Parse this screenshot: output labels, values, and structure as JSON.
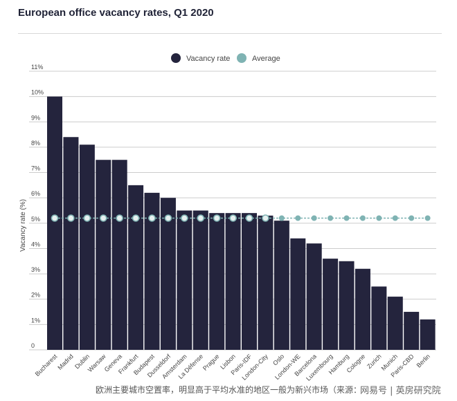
{
  "title": "European office vacancy rates, Q1 2020",
  "caption": "欧洲主要城市空置率，明显高于平均水准的地区一般为新兴市场（来源：",
  "watermark": "网易号 | 英房研究院",
  "chart_data": {
    "type": "bar",
    "title": "European office vacancy rates, Q1 2020",
    "xlabel": "",
    "ylabel": "Vacancy rate (%)",
    "ylim": [
      0,
      11
    ],
    "yticks": [
      0,
      1,
      2,
      3,
      4,
      5,
      6,
      7,
      8,
      9,
      10,
      11
    ],
    "ytick_labels": [
      "0",
      "1%",
      "2%",
      "3%",
      "4%",
      "5%",
      "6%",
      "7%",
      "8%",
      "9%",
      "10%",
      "11%"
    ],
    "grid": true,
    "legend_position": "top-center",
    "colors": {
      "bar": "#24243d",
      "average": "#7fb3b3",
      "grid": "#cccccc"
    },
    "categories": [
      "Bucharest",
      "Madrid",
      "Dublin",
      "Warsaw",
      "Geneva",
      "Frankfurt",
      "Budapest",
      "Dusseldorf",
      "Amsterdam",
      "La Défense",
      "Prague",
      "Lisbon",
      "Paris-IDF",
      "London-City",
      "Oslo",
      "London-WE",
      "Barcelona",
      "Luxembourg",
      "Hamburg",
      "Cologne",
      "Zurich",
      "Munich",
      "Paris-CBD",
      "Berlin"
    ],
    "series": [
      {
        "name": "Vacancy rate",
        "type": "bar",
        "values": [
          10.0,
          8.4,
          8.1,
          7.5,
          7.5,
          6.5,
          6.2,
          6.0,
          5.5,
          5.5,
          5.4,
          5.4,
          5.4,
          5.3,
          5.1,
          4.4,
          4.2,
          3.6,
          3.5,
          3.2,
          2.5,
          2.1,
          1.5,
          1.2
        ]
      },
      {
        "name": "Average",
        "type": "line",
        "values": [
          5.2,
          5.2,
          5.2,
          5.2,
          5.2,
          5.2,
          5.2,
          5.2,
          5.2,
          5.2,
          5.2,
          5.2,
          5.2,
          5.2,
          5.2,
          5.2,
          5.2,
          5.2,
          5.2,
          5.2,
          5.2,
          5.2,
          5.2,
          5.2
        ]
      }
    ]
  }
}
